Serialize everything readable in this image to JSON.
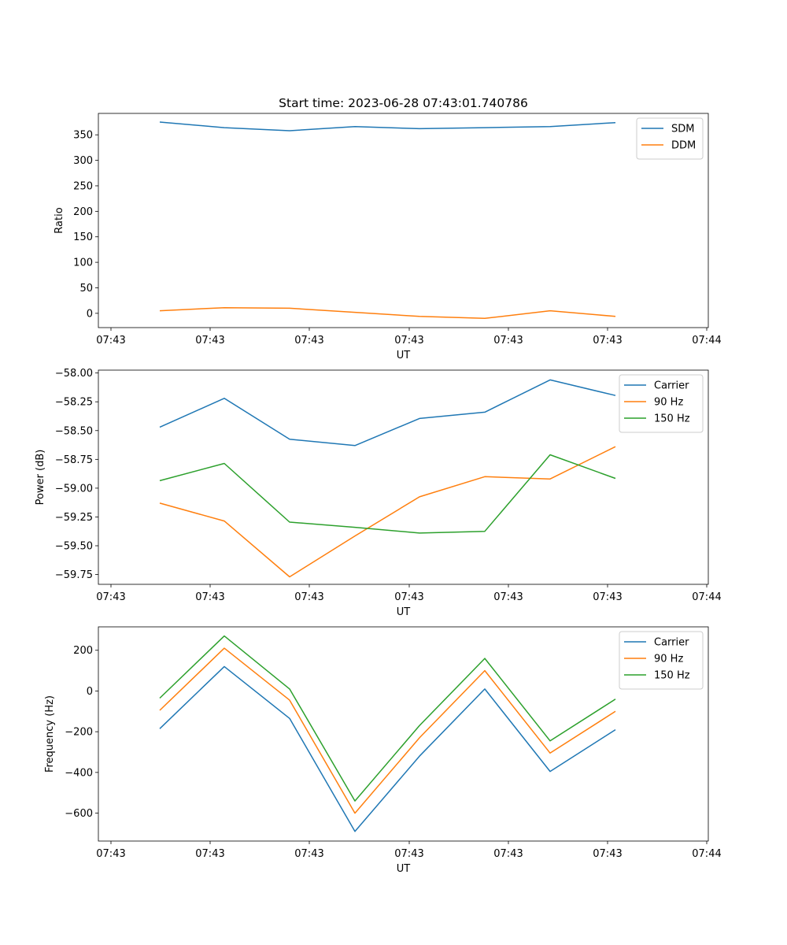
{
  "chart_data": [
    {
      "type": "line",
      "title": "Start time: 2023-06-28 07:43:01.740786",
      "xlabel": "UT",
      "ylabel": "Ratio",
      "xticks": [
        "07:43",
        "07:43",
        "07:43",
        "07:43",
        "07:43",
        "07:43",
        "07:44"
      ],
      "yticks": [
        "0",
        "50",
        "100",
        "150",
        "200",
        "250",
        "300",
        "350"
      ],
      "ylim": [
        -28,
        392
      ],
      "legend_position": "upper right",
      "series": [
        {
          "name": "SDM",
          "color": "#1f77b4",
          "values": [
            375,
            364,
            358,
            366,
            362,
            364,
            366,
            374
          ]
        },
        {
          "name": "DDM",
          "color": "#ff7f0e",
          "values": [
            5,
            11,
            10,
            2,
            -6,
            -10,
            5,
            -6
          ]
        }
      ]
    },
    {
      "type": "line",
      "title": "",
      "xlabel": "UT",
      "ylabel": "Power (dB)",
      "xticks": [
        "07:43",
        "07:43",
        "07:43",
        "07:43",
        "07:43",
        "07:43",
        "07:44"
      ],
      "yticks": [
        "−58.00",
        "−58.25",
        "−58.50",
        "−58.75",
        "−59.00",
        "−59.25",
        "−59.50",
        "−59.75"
      ],
      "ylim": [
        -59.835,
        -57.975
      ],
      "legend_position": "upper right",
      "series": [
        {
          "name": "Carrier",
          "color": "#1f77b4",
          "values": [
            -58.47,
            -58.22,
            -58.575,
            -58.63,
            -58.395,
            -58.34,
            -58.06,
            -58.195
          ]
        },
        {
          "name": "90 Hz",
          "color": "#ff7f0e",
          "values": [
            -59.13,
            -59.285,
            -59.77,
            -59.415,
            -59.075,
            -58.9,
            -58.92,
            -58.64
          ]
        },
        {
          "name": "150 Hz",
          "color": "#2ca02c",
          "values": [
            -58.935,
            -58.785,
            -59.295,
            -59.34,
            -59.39,
            -59.375,
            -58.71,
            -58.915
          ]
        }
      ]
    },
    {
      "type": "line",
      "title": "",
      "xlabel": "UT",
      "ylabel": "Frequency (Hz)",
      "xticks": [
        "07:43",
        "07:43",
        "07:43",
        "07:43",
        "07:43",
        "07:43",
        "07:44"
      ],
      "yticks": [
        "−600",
        "−400",
        "−200",
        "0",
        "200"
      ],
      "ylim": [
        -737,
        315
      ],
      "legend_position": "upper right",
      "series": [
        {
          "name": "Carrier",
          "color": "#1f77b4",
          "values": [
            -185,
            120,
            -135,
            -690,
            -320,
            10,
            -395,
            -190
          ]
        },
        {
          "name": "90 Hz",
          "color": "#ff7f0e",
          "values": [
            -95,
            210,
            -45,
            -600,
            -230,
            100,
            -305,
            -100
          ]
        },
        {
          "name": "150 Hz",
          "color": "#2ca02c",
          "values": [
            -35,
            270,
            10,
            -540,
            -170,
            160,
            -245,
            -40
          ]
        }
      ]
    }
  ]
}
